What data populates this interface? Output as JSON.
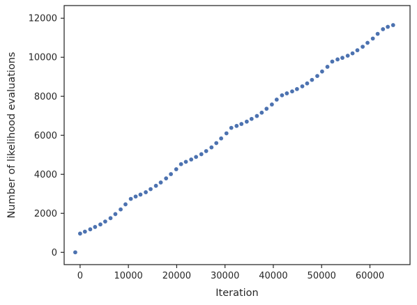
{
  "chart_data": {
    "type": "scatter",
    "title": "",
    "xlabel": "Iteration",
    "ylabel": "Number of likelihood evaluations",
    "xlim": [
      -3300,
      68300
    ],
    "ylim": [
      -630,
      12650
    ],
    "xticks": [
      0,
      10000,
      20000,
      30000,
      40000,
      50000,
      60000
    ],
    "yticks": [
      0,
      2000,
      4000,
      6000,
      8000,
      10000,
      12000
    ],
    "xtick_labels": [
      "0",
      "10000",
      "20000",
      "30000",
      "40000",
      "50000",
      "60000"
    ],
    "ytick_labels": [
      "0",
      "2000",
      "4000",
      "6000",
      "8000",
      "10000",
      "12000"
    ],
    "grid": false,
    "marker_color": "#4c72b0",
    "series": [
      {
        "name": "",
        "x": [
          -1000,
          0,
          1000,
          2100,
          3100,
          4200,
          5200,
          6300,
          7300,
          8400,
          9400,
          10500,
          11500,
          12500,
          13600,
          14600,
          15700,
          16700,
          17800,
          18800,
          19900,
          20900,
          21900,
          23000,
          24000,
          25100,
          26100,
          27200,
          28200,
          29200,
          30300,
          31300,
          32400,
          33400,
          34500,
          35500,
          36600,
          37600,
          38600,
          39700,
          40700,
          41800,
          42800,
          43900,
          44900,
          46000,
          47000,
          48000,
          49100,
          50100,
          51200,
          52200,
          53300,
          54300,
          55400,
          56400,
          57400,
          58500,
          59500,
          60600,
          61600,
          62700,
          63700,
          64800
        ],
        "y": [
          0,
          960,
          1060,
          1180,
          1300,
          1430,
          1580,
          1750,
          1960,
          2200,
          2460,
          2740,
          2860,
          2960,
          3080,
          3240,
          3410,
          3580,
          3790,
          4010,
          4260,
          4520,
          4640,
          4760,
          4890,
          5030,
          5190,
          5380,
          5600,
          5840,
          6100,
          6380,
          6480,
          6580,
          6700,
          6840,
          6990,
          7160,
          7360,
          7580,
          7830,
          8050,
          8150,
          8250,
          8370,
          8510,
          8660,
          8840,
          9040,
          9270,
          9510,
          9780,
          9890,
          9970,
          10080,
          10200,
          10360,
          10540,
          10740,
          10960,
          11200,
          11440,
          11560,
          11650
        ]
      }
    ]
  }
}
